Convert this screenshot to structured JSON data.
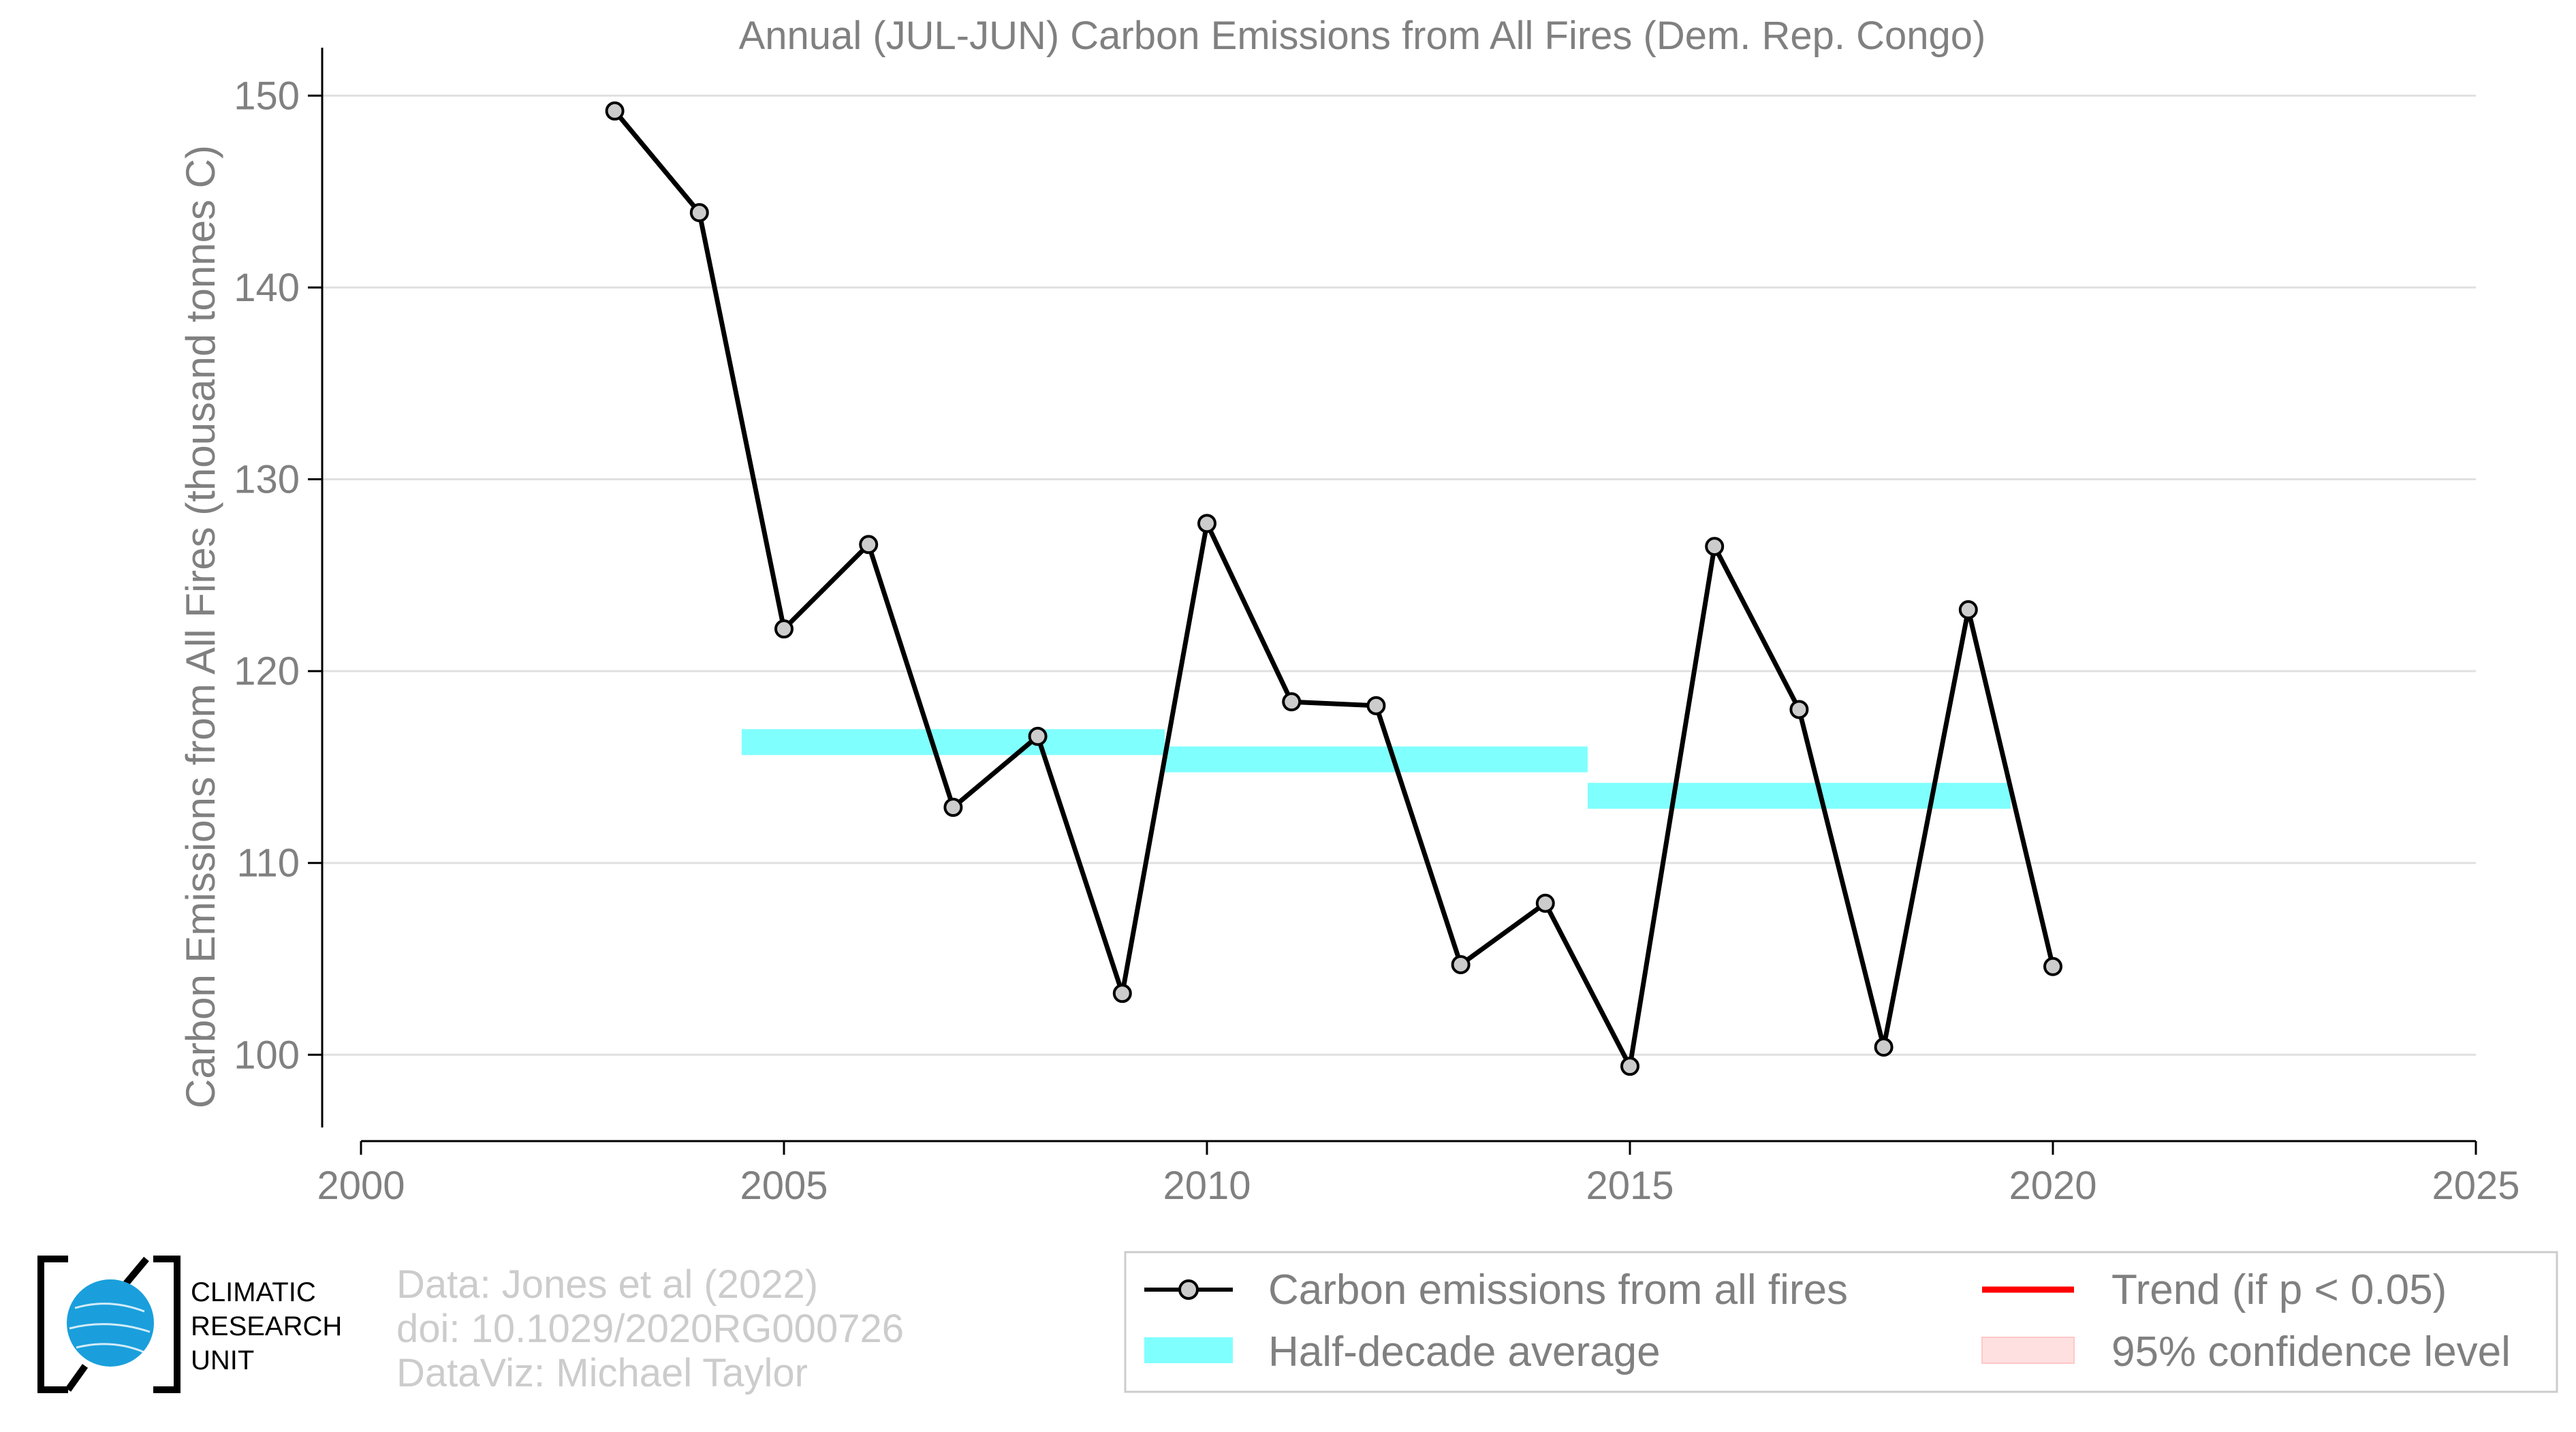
{
  "chart_data": {
    "type": "line",
    "title": "Annual (JUL-JUN) Carbon Emissions from All Fires (Dem. Rep. Congo)",
    "ylabel": "Carbon Emissions from All Fires (thousand tonnes C)",
    "xlabel": "",
    "xlim": [
      2000,
      2025
    ],
    "ylim": [
      95.5,
      152.5
    ],
    "x_ticks": [
      2000,
      2005,
      2010,
      2015,
      2020,
      2025
    ],
    "y_ticks": [
      100,
      110,
      120,
      130,
      140,
      150
    ],
    "grid": "horizontal",
    "legend_position": "bottom-right",
    "series": [
      {
        "name": "Carbon emissions from all fires",
        "color": "#000000",
        "marker_fill": "#cccccc",
        "x": [
          2003,
          2004,
          2005,
          2006,
          2007,
          2008,
          2009,
          2010,
          2011,
          2012,
          2013,
          2014,
          2015,
          2016,
          2017,
          2018,
          2019,
          2020
        ],
        "y": [
          149.2,
          143.9,
          122.2,
          126.6,
          112.9,
          116.6,
          103.2,
          127.7,
          118.4,
          118.2,
          104.7,
          107.9,
          99.4,
          126.5,
          118.0,
          100.4,
          123.2,
          104.6
        ]
      }
    ],
    "half_decade_average": {
      "name": "Half-decade average",
      "color": "#80ffff",
      "segments": [
        {
          "x_start": 2004.5,
          "x_end": 2009.5,
          "value": 116.3
        },
        {
          "x_start": 2009.5,
          "x_end": 2014.5,
          "value": 115.4
        },
        {
          "x_start": 2014.5,
          "x_end": 2019.5,
          "value": 113.5
        }
      ]
    },
    "legend": [
      {
        "label": "Carbon emissions from all fires",
        "kind": "line-marker",
        "color": "#000000"
      },
      {
        "label": "Trend (if p < 0.05)",
        "kind": "line",
        "color": "#ff0000"
      },
      {
        "label": "Half-decade average",
        "kind": "band",
        "color": "#80ffff"
      },
      {
        "label": "95% confidence level",
        "kind": "band",
        "color": "#ffe0e0"
      }
    ]
  },
  "credits": {
    "line1": "Data: Jones et al (2022)",
    "line2": "doi: 10.1029/2020RG000726",
    "line3": "DataViz: Michael Taylor"
  },
  "logo": {
    "line1": "CLIMATIC",
    "line2": "RESEARCH",
    "line3": "UNIT",
    "globe_color": "#1a9fdc"
  }
}
